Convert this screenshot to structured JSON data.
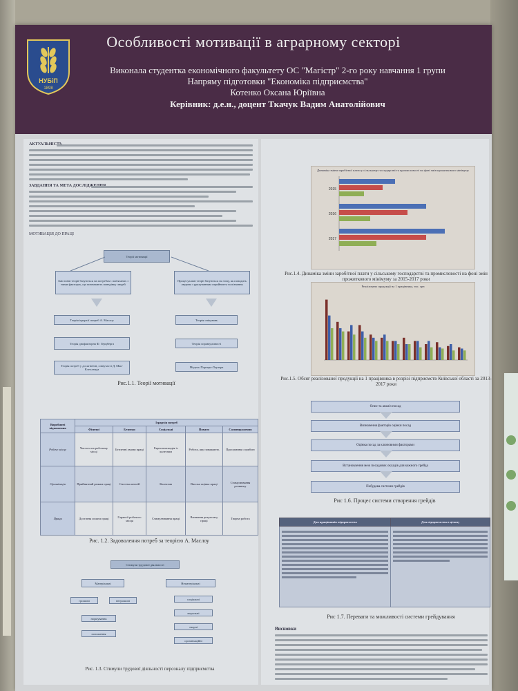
{
  "header": {
    "title": "Особливості мотивації в аграрному секторі",
    "line1": "Виконала студентка економічного факультету  ОС \"Магістр\" 2-го року навчання 1 групи",
    "line2": "Напряму підготовки  \"Економіка підприємства\"",
    "line3": "Котенко Оксана Юріївна",
    "line4": "Керівник: д.е.н., доцент Ткачук Вадим Анатолійович",
    "logo_text": "НУБіП",
    "logo_year": "1898"
  },
  "intro": {
    "lead": "АКТУАЛЬНІСТЬ.",
    "tasks_lead": "ЗАВДАННЯ ТА МЕТА ДОСЛІДЖЕННЯ.",
    "theory_heading": "МОТИВАЦІЯ ДО ПРАЦІ"
  },
  "fig1": {
    "root": "Теорії мотивації",
    "left_branch": "Змістовні теорії базуються на потребах і пов'язаних з ними факторах, що визначають поведінку людей",
    "right_branch": "Процесуальні теорії базуються на тому, як поводить людина з урахуванням сприйняття та пізнання",
    "left_items": [
      "Теорія ієрархії потреб А. Маслоу",
      "Теорія двофакторна Ф. Герцберга",
      "Теорія потреб у досягненні, співучасті Д. Мак-Клелланда"
    ],
    "right_items": [
      "Теорія очікувань",
      "Теорія справедливості",
      "Модель Портера-Лоулера"
    ],
    "caption": "Рис.1.1. Теорії мотивації"
  },
  "maslow": {
    "corner": "Виробничі відношення",
    "group": "Ієрархія потреб",
    "columns": [
      "Фізичні",
      "Безпеки",
      "Соціальні",
      "Поваги",
      "Самовираження"
    ],
    "rows": [
      {
        "head": "Робоче місце",
        "cells": [
          "Чистота на робочому місці",
          "Безпечні умови праці",
          "Гарна взаємодія із колегами",
          "Робота, яку поважають",
          "Просування службою"
        ]
      },
      {
        "head": "Організація",
        "cells": [
          "Прийнятний режим праці",
          "Система пенсій",
          "Колектив",
          "Висока оцінка праці",
          "Стимулювання розвитку"
        ]
      },
      {
        "head": "Праця",
        "cells": [
          "Достатня оплата праці",
          "Гарантії робочого місця",
          "Стимулювання праці",
          "Визнання результату праці",
          "Творча робота"
        ]
      }
    ],
    "caption": "Рис. 1.2. Задоволення потреб за теорією А. Маслоу"
  },
  "fig3": {
    "root": "Стимули трудової діяльності",
    "left": "Матеріальні",
    "right": "Нематеріальні",
    "left_items": [
      "грошові",
      "негрошові"
    ],
    "left_sub": [
      "нормування",
      "положення"
    ],
    "right_items": [
      "соціальні",
      "моральні",
      "творчі",
      "організаційні"
    ],
    "caption": "Рис. 1.3. Стимули трудової діяльності персоналу підприємства"
  },
  "fig4": {
    "caption": "Рис.1.4. Динаміка зміни заробітної плати у сільському господарстві та промисловості на фоні змін прожиткового мінімуму за 2015-2017 роки"
  },
  "fig5": {
    "title": "Реалізовано продукції на 1 працівника, тис. грн",
    "caption": "Рис.1.5. Обсяг реалізованої продукції на 1 працівника в розрізі підприємств Київської області за 2013-2017 роки"
  },
  "fig6": {
    "steps": [
      "Опис та аналіз посад",
      "Визначення факторів оцінки посад",
      "Оцінка посад за ключовими факторами",
      "Встановлення меж посадових окладів для кожного грейда",
      "Побудова системи грейдів"
    ],
    "caption": "Рис 1.6. Процес системи створення грейдів"
  },
  "fig7": {
    "col1": "Для працівників підприємства",
    "col2": "Для підприємства в цілому",
    "caption": "Рис 1.7. Переваги та можливості системи грейдування"
  },
  "conclusions": {
    "heading": "Висновки"
  },
  "chart_data": [
    {
      "type": "bar",
      "title": "Динаміка зміни заробітної плати у сільському господарстві та промисловості на фоні змін прожиткового мінімуму",
      "categories": [
        "2015",
        "2016",
        "2017"
      ],
      "series": [
        {
          "name": "",
          "values": [
            0.45,
            0.7,
            0.85
          ]
        },
        {
          "name": "",
          "values": [
            0.35,
            0.55,
            0.7
          ]
        },
        {
          "name": "",
          "values": [
            0.2,
            0.25,
            0.3
          ]
        }
      ],
      "colors": [
        "#4b6fb5",
        "#c64d4a",
        "#8fae55"
      ]
    },
    {
      "type": "bar",
      "title": "Реалізовано продукції на 1 працівника, тис. грн",
      "categories": [
        "1",
        "2",
        "3",
        "4",
        "5",
        "6",
        "7",
        "8",
        "9",
        "10",
        "11",
        "12",
        "13"
      ],
      "series": [
        {
          "name": "",
          "values": [
            0.95,
            0.6,
            0.45,
            0.55,
            0.4,
            0.35,
            0.3,
            0.35,
            0.3,
            0.25,
            0.28,
            0.22,
            0.2
          ]
        },
        {
          "name": "",
          "values": [
            0.7,
            0.5,
            0.55,
            0.45,
            0.35,
            0.4,
            0.3,
            0.25,
            0.3,
            0.3,
            0.2,
            0.25,
            0.18
          ]
        },
        {
          "name": "",
          "values": [
            0.5,
            0.45,
            0.4,
            0.35,
            0.3,
            0.3,
            0.25,
            0.25,
            0.2,
            0.2,
            0.18,
            0.15,
            0.15
          ]
        }
      ],
      "colors": [
        "#7a2f2a",
        "#3d5fa8",
        "#8fae55"
      ]
    }
  ]
}
